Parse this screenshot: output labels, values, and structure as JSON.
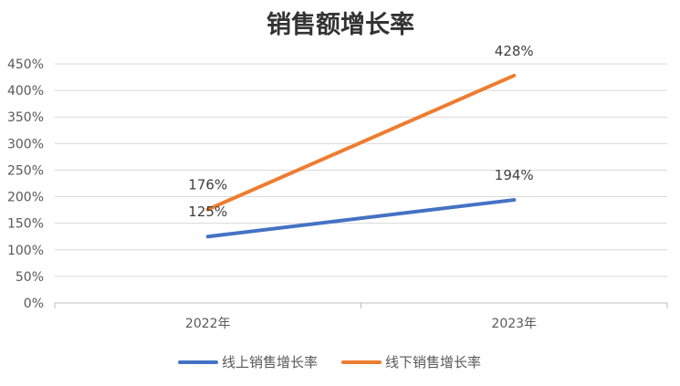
{
  "chart_data": {
    "type": "line",
    "title": "销售额增长率",
    "categories": [
      "2022年",
      "2023年"
    ],
    "series": [
      {
        "name": "线上销售增长率",
        "values": [
          125,
          194
        ],
        "labels": [
          "125%",
          "194%"
        ],
        "color": "#4472C4"
      },
      {
        "name": "线下销售增长率",
        "values": [
          176,
          428
        ],
        "labels": [
          "176%",
          "428%"
        ],
        "color": "#ED7D31"
      }
    ],
    "y_ticks": [
      "0%",
      "50%",
      "100%",
      "150%",
      "200%",
      "250%",
      "300%",
      "350%",
      "400%",
      "450%"
    ],
    "ylim": [
      0,
      450
    ],
    "grid": true,
    "legend_position": "bottom"
  }
}
